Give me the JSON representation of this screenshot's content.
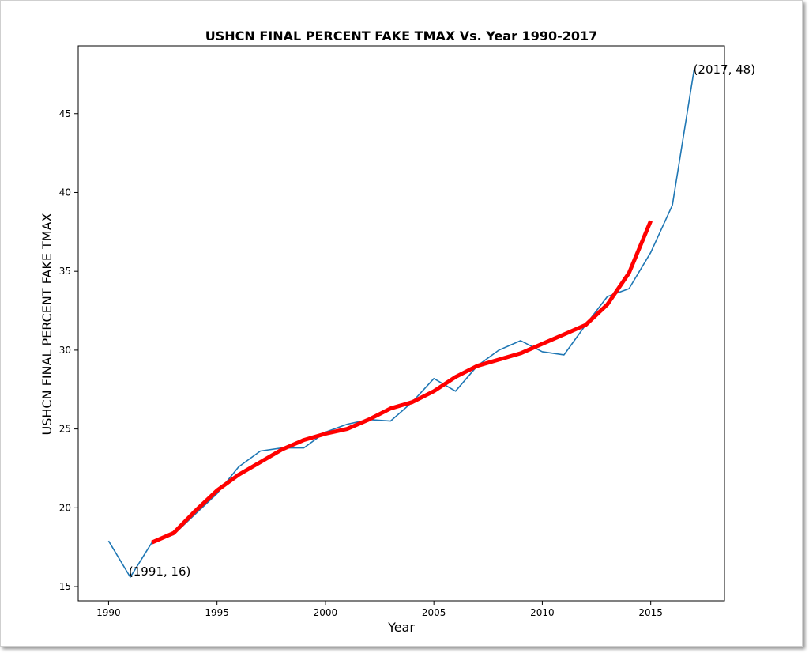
{
  "chart_data": {
    "type": "line",
    "title": "USHCN FINAL PERCENT FAKE TMAX Vs. Year 1990-2017",
    "xlabel": "Year",
    "ylabel": "USHCN FINAL PERCENT FAKE TMAX",
    "xlim": [
      1988.6,
      2018.4
    ],
    "ylim": [
      14.1,
      49.3
    ],
    "xticks": [
      1990,
      1995,
      2000,
      2005,
      2010,
      2015
    ],
    "yticks": [
      15,
      20,
      25,
      30,
      35,
      40,
      45
    ],
    "grid": false,
    "series": [
      {
        "color": "#1f77b4",
        "x": [
          1990,
          1991,
          1992,
          1993,
          1994,
          1995,
          1996,
          1997,
          1998,
          1999,
          2000,
          2001,
          2002,
          2003,
          2004,
          2005,
          2006,
          2007,
          2008,
          2009,
          2010,
          2011,
          2012,
          2013,
          2014,
          2015,
          2016,
          2017
        ],
        "y": [
          17.9,
          15.6,
          17.8,
          18.3,
          19.6,
          20.9,
          22.6,
          23.6,
          23.8,
          23.8,
          24.8,
          25.3,
          25.6,
          25.5,
          26.7,
          28.2,
          27.4,
          29.0,
          30.0,
          30.6,
          29.9,
          29.7,
          31.6,
          33.4,
          33.9,
          36.2,
          39.2,
          47.8
        ]
      },
      {
        "color": "#ff0000",
        "x": [
          1992,
          1993,
          1994,
          1995,
          1996,
          1997,
          1998,
          1999,
          2000,
          2001,
          2002,
          2003,
          2004,
          2005,
          2006,
          2007,
          2008,
          2009,
          2010,
          2011,
          2012,
          2013,
          2014,
          2015
        ],
        "y": [
          17.8,
          18.4,
          19.8,
          21.1,
          22.1,
          22.9,
          23.7,
          24.3,
          24.7,
          25.0,
          25.6,
          26.3,
          26.7,
          27.4,
          28.3,
          29.0,
          29.4,
          29.8,
          30.4,
          31.0,
          31.6,
          32.9,
          34.9,
          38.2
        ]
      }
    ],
    "annotations": [
      {
        "text": "(1991, 16)",
        "x": 1991,
        "y": 15.6
      },
      {
        "text": "(2017, 48)",
        "x": 2017,
        "y": 47.8
      }
    ]
  }
}
